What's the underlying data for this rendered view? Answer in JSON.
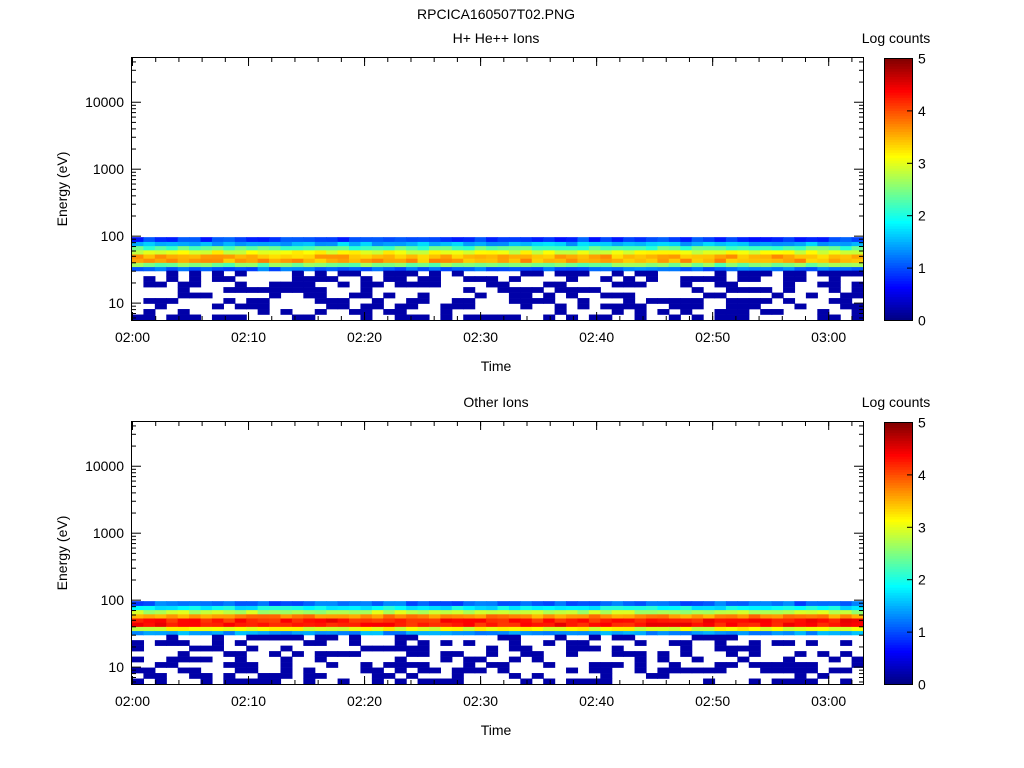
{
  "figure": {
    "title": "RPCICA160507T02.PNG"
  },
  "chart_data": [
    {
      "type": "heatmap",
      "title": "H+ He++ Ions",
      "xlabel": "Time",
      "ylabel": "Energy (eV)",
      "x_ticks": [
        "02:00",
        "02:10",
        "02:20",
        "02:30",
        "02:40",
        "02:50",
        "03:00"
      ],
      "x_range": [
        "02:00",
        "03:03"
      ],
      "y_scale": "log",
      "y_ticks": [
        10,
        100,
        1000,
        10000
      ],
      "y_range": [
        5.5,
        45000
      ],
      "colorbar": {
        "label": "Log counts",
        "range": [
          0,
          5
        ],
        "ticks": [
          0,
          1,
          2,
          3,
          4,
          5
        ],
        "colormap": "jet"
      },
      "peak_energy_eV": 45,
      "peak_log_counts": 3.6,
      "signal_energy_range_eV": [
        30,
        95
      ],
      "noise_energy_range_eV": [
        5.5,
        30
      ],
      "noise_log_counts": 0.2
    },
    {
      "type": "heatmap",
      "title": "Other Ions",
      "xlabel": "Time",
      "ylabel": "Energy (eV)",
      "x_ticks": [
        "02:00",
        "02:10",
        "02:20",
        "02:30",
        "02:40",
        "02:50",
        "03:00"
      ],
      "x_range": [
        "02:00",
        "03:03"
      ],
      "y_scale": "log",
      "y_ticks": [
        10,
        100,
        1000,
        10000
      ],
      "y_range": [
        5.5,
        45000
      ],
      "colorbar": {
        "label": "Log counts",
        "range": [
          0,
          5
        ],
        "ticks": [
          0,
          1,
          2,
          3,
          4,
          5
        ],
        "colormap": "jet"
      },
      "peak_energy_eV": 45,
      "peak_log_counts": 4.4,
      "signal_energy_range_eV": [
        30,
        95
      ],
      "noise_energy_range_eV": [
        5.5,
        30
      ],
      "noise_log_counts": 0.2
    }
  ]
}
